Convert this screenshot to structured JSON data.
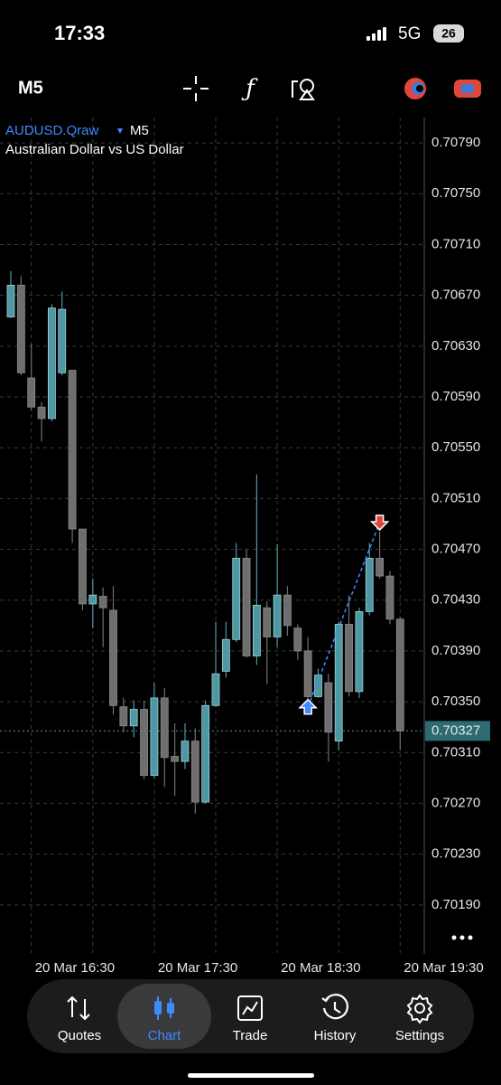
{
  "status_bar": {
    "time": "17:33",
    "network": "5G",
    "battery": "26"
  },
  "toolbar": {
    "timeframe": "M5"
  },
  "chart_data": {
    "type": "candlestick",
    "symbol": "AUDUSD.Qraw",
    "timeframe": "M5",
    "description": "Australian Dollar vs US Dollar",
    "categories": [
      null,
      null,
      "20 Mar 16:30",
      null,
      null,
      null,
      null,
      null,
      null,
      null,
      null,
      null,
      null,
      null,
      "20 Mar 17:30",
      null,
      null,
      null,
      null,
      null,
      null,
      null,
      null,
      null,
      null,
      null,
      "20 Mar 18:30",
      null,
      null,
      null,
      null,
      null,
      null,
      null,
      null,
      null,
      null,
      null,
      "20 Mar 19:30"
    ],
    "open": [
      0.70653,
      0.70678,
      0.70605,
      0.70582,
      0.70573,
      0.70609,
      0.70611,
      0.70486,
      0.70427,
      0.70433,
      0.70422,
      0.70346,
      0.70331,
      0.70344,
      0.70292,
      0.70353,
      0.70307,
      0.70303,
      0.70319,
      0.70271,
      0.70347,
      0.70374,
      0.70399,
      0.70463,
      0.70386,
      0.70424,
      0.70401,
      0.70434,
      0.70408,
      0.7039,
      0.70354,
      0.70365,
      0.70319,
      0.70411,
      0.70358,
      0.70421,
      0.70463,
      0.70449,
      0.70415
    ],
    "high": [
      0.70689,
      0.70685,
      0.70632,
      0.70586,
      0.70663,
      0.70673,
      0.70611,
      0.70486,
      0.70447,
      0.7044,
      0.70441,
      0.70353,
      0.70351,
      0.70351,
      0.70365,
      0.70361,
      0.70333,
      0.70333,
      0.70329,
      0.70351,
      0.70413,
      0.70413,
      0.70475,
      0.7047,
      0.70529,
      0.70429,
      0.70474,
      0.70441,
      0.70411,
      0.70401,
      0.70376,
      0.70372,
      0.70413,
      0.70434,
      0.70424,
      0.70475,
      0.70484,
      0.70453,
      0.70417
    ],
    "low": [
      0.70652,
      0.70607,
      0.70579,
      0.70555,
      0.70571,
      0.70607,
      0.70475,
      0.70422,
      0.70408,
      0.70393,
      0.7034,
      0.70326,
      0.70322,
      0.70289,
      0.7029,
      0.70283,
      0.70276,
      0.70297,
      0.70262,
      0.7027,
      0.70346,
      0.70369,
      0.70397,
      0.70385,
      0.70379,
      0.70364,
      0.70393,
      0.70402,
      0.70383,
      0.70351,
      0.70353,
      0.70303,
      0.70312,
      0.70354,
      0.70353,
      0.70418,
      0.70447,
      0.70411,
      0.70312
    ],
    "close": [
      0.70678,
      0.70609,
      0.70582,
      0.70573,
      0.7066,
      0.70659,
      0.70486,
      0.70427,
      0.70434,
      0.70424,
      0.70347,
      0.70331,
      0.70344,
      0.70292,
      0.70353,
      0.70306,
      0.70303,
      0.70319,
      0.70271,
      0.70347,
      0.70372,
      0.70399,
      0.70463,
      0.70386,
      0.70426,
      0.70401,
      0.70434,
      0.7041,
      0.7039,
      0.70354,
      0.70371,
      0.70326,
      0.70411,
      0.70358,
      0.70421,
      0.70463,
      0.70449,
      0.70415,
      0.70327
    ],
    "up_color": "#4f98a3",
    "down_color": "#6e6e6e",
    "ylim": [
      0.70155,
      0.7081
    ],
    "yticks": [
      {
        "value": 0.7079,
        "label": "0.70790"
      },
      {
        "value": 0.7075,
        "label": "0.70750"
      },
      {
        "value": 0.7071,
        "label": "0.70710"
      },
      {
        "value": 0.7067,
        "label": "0.70670"
      },
      {
        "value": 0.7063,
        "label": "0.70630"
      },
      {
        "value": 0.7059,
        "label": "0.70590"
      },
      {
        "value": 0.7055,
        "label": "0.70550"
      },
      {
        "value": 0.7051,
        "label": "0.70510"
      },
      {
        "value": 0.7047,
        "label": "0.70470"
      },
      {
        "value": 0.7043,
        "label": "0.70430"
      },
      {
        "value": 0.7039,
        "label": "0.70390"
      },
      {
        "value": 0.7035,
        "label": "0.70350"
      },
      {
        "value": 0.7031,
        "label": "0.70310"
      },
      {
        "value": 0.7027,
        "label": "0.70270"
      },
      {
        "value": 0.7023,
        "label": "0.70230"
      },
      {
        "value": 0.7019,
        "label": "0.70190"
      }
    ],
    "last_price": {
      "value": 0.70327,
      "label": "0.70327"
    },
    "trades": {
      "buy": [
        null,
        null,
        null,
        null,
        null,
        null,
        null,
        null,
        null,
        null,
        null,
        null,
        null,
        null,
        null,
        null,
        null,
        null,
        null,
        null,
        null,
        null,
        null,
        null,
        null,
        null,
        null,
        null,
        null,
        0.70346,
        null,
        null,
        null,
        null,
        null,
        null,
        null,
        null,
        null
      ],
      "sell": [
        null,
        null,
        null,
        null,
        null,
        null,
        null,
        null,
        null,
        null,
        null,
        null,
        null,
        null,
        null,
        null,
        null,
        null,
        null,
        null,
        null,
        null,
        null,
        null,
        null,
        null,
        null,
        null,
        null,
        null,
        null,
        null,
        null,
        null,
        null,
        null,
        0.70491,
        null,
        null
      ]
    },
    "grid": true
  },
  "nav": {
    "items": [
      "Quotes",
      "Chart",
      "Trade",
      "History",
      "Settings"
    ],
    "active": 1
  }
}
